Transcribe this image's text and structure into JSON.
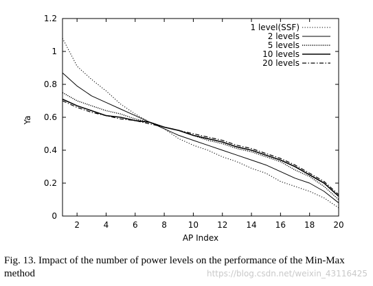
{
  "chart_data": {
    "type": "line",
    "xlabel": "AP Index",
    "ylabel": "Ya",
    "xlim": [
      1,
      20
    ],
    "ylim": [
      0,
      1.2
    ],
    "xticks": [
      2,
      4,
      6,
      8,
      10,
      12,
      14,
      16,
      18,
      20
    ],
    "yticks": [
      0,
      0.2,
      0.4,
      0.6,
      0.8,
      1,
      1.2
    ],
    "ytick_labels": [
      "0",
      "0.2",
      "0.4",
      "0.6",
      "0.8",
      "1",
      "1.2"
    ],
    "grid": false,
    "legend_position": "top-right",
    "x": [
      1,
      2,
      3,
      4,
      5,
      6,
      7,
      8,
      9,
      10,
      11,
      12,
      13,
      14,
      15,
      16,
      17,
      18,
      19,
      20
    ],
    "series": [
      {
        "name": "1 level(SSF)",
        "style": "dotted",
        "values": [
          1.08,
          0.91,
          0.83,
          0.76,
          0.68,
          0.62,
          0.57,
          0.53,
          0.47,
          0.43,
          0.4,
          0.36,
          0.33,
          0.29,
          0.26,
          0.21,
          0.18,
          0.15,
          0.11,
          0.05
        ]
      },
      {
        "name": "2 levels",
        "style": "solid-thin",
        "values": [
          0.87,
          0.79,
          0.73,
          0.69,
          0.65,
          0.61,
          0.57,
          0.53,
          0.49,
          0.46,
          0.43,
          0.4,
          0.37,
          0.34,
          0.31,
          0.27,
          0.23,
          0.2,
          0.15,
          0.08
        ]
      },
      {
        "name": "5 levels",
        "style": "dotted-dense",
        "values": [
          0.75,
          0.7,
          0.67,
          0.64,
          0.62,
          0.59,
          0.57,
          0.54,
          0.52,
          0.49,
          0.46,
          0.44,
          0.41,
          0.39,
          0.36,
          0.33,
          0.28,
          0.24,
          0.18,
          0.1
        ]
      },
      {
        "name": "10 levels",
        "style": "solid-thick",
        "values": [
          0.71,
          0.67,
          0.64,
          0.61,
          0.6,
          0.58,
          0.57,
          0.54,
          0.52,
          0.49,
          0.47,
          0.45,
          0.42,
          0.4,
          0.37,
          0.34,
          0.3,
          0.25,
          0.2,
          0.12
        ]
      },
      {
        "name": "20 levels",
        "style": "dash-dot",
        "values": [
          0.7,
          0.66,
          0.63,
          0.61,
          0.59,
          0.58,
          0.56,
          0.54,
          0.52,
          0.5,
          0.48,
          0.46,
          0.43,
          0.41,
          0.38,
          0.35,
          0.31,
          0.26,
          0.21,
          0.13
        ]
      }
    ]
  },
  "caption": "Fig. 13.  Impact of the number of power levels on the performance of the Min-Max method",
  "watermark": "https://blog.csdn.net/weixin_43116425"
}
